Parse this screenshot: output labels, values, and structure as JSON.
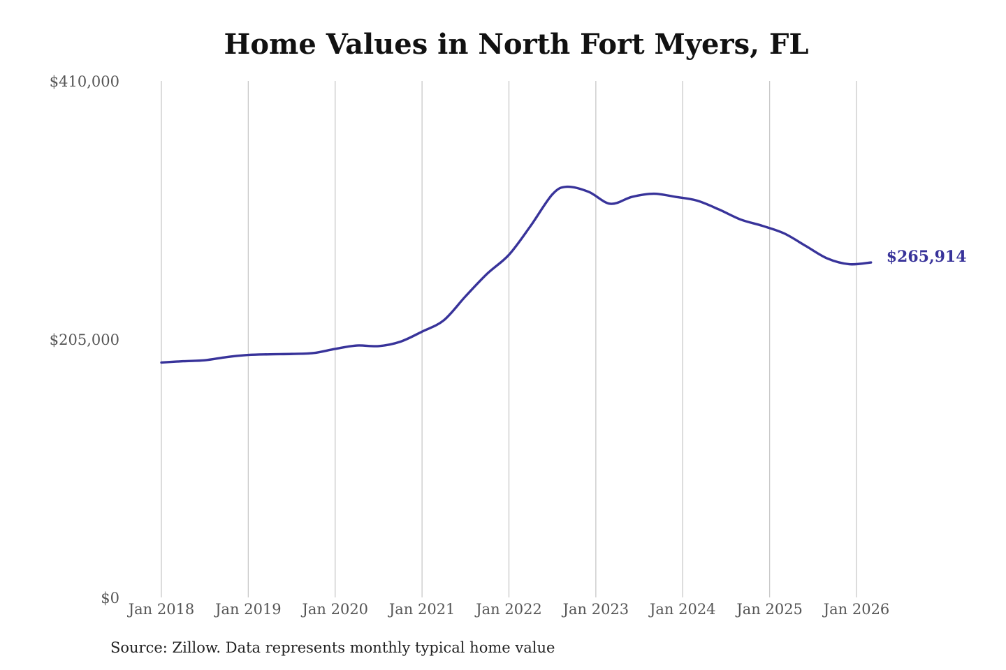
{
  "colors": {
    "series": "#38339a",
    "grid": "#c8c8c8",
    "title": "#111111"
  },
  "chart_data": {
    "type": "line",
    "title": "Home Values in North Fort Myers, FL",
    "xlabel": "",
    "ylabel": "",
    "ylim": [
      0,
      410000
    ],
    "y_ticks": [
      {
        "value": 0,
        "label": "$0"
      },
      {
        "value": 205000,
        "label": "$205,000"
      },
      {
        "value": 410000,
        "label": "$410,000"
      }
    ],
    "x_ticks": [
      {
        "value": "2018-01",
        "label": "Jan 2018"
      },
      {
        "value": "2019-01",
        "label": "Jan 2019"
      },
      {
        "value": "2020-01",
        "label": "Jan 2020"
      },
      {
        "value": "2021-01",
        "label": "Jan 2021"
      },
      {
        "value": "2022-01",
        "label": "Jan 2022"
      },
      {
        "value": "2023-01",
        "label": "Jan 2023"
      },
      {
        "value": "2024-01",
        "label": "Jan 2024"
      },
      {
        "value": "2025-01",
        "label": "Jan 2025"
      },
      {
        "value": "2026-01",
        "label": "Jan 2026"
      }
    ],
    "grid": "vertical",
    "end_label": "$265,914",
    "series": [
      {
        "name": "",
        "points": [
          {
            "x": "2018-01",
            "y": 186500
          },
          {
            "x": "2018-04",
            "y": 187500
          },
          {
            "x": "2018-07",
            "y": 188300
          },
          {
            "x": "2018-10",
            "y": 190800
          },
          {
            "x": "2019-01",
            "y": 192500
          },
          {
            "x": "2019-04",
            "y": 193000
          },
          {
            "x": "2019-07",
            "y": 193300
          },
          {
            "x": "2019-10",
            "y": 194000
          },
          {
            "x": "2020-01",
            "y": 197300
          },
          {
            "x": "2020-04",
            "y": 200000
          },
          {
            "x": "2020-07",
            "y": 199500
          },
          {
            "x": "2020-10",
            "y": 203000
          },
          {
            "x": "2021-01",
            "y": 211000
          },
          {
            "x": "2021-04",
            "y": 220000
          },
          {
            "x": "2021-07",
            "y": 239000
          },
          {
            "x": "2021-10",
            "y": 257000
          },
          {
            "x": "2022-01",
            "y": 272000
          },
          {
            "x": "2022-04",
            "y": 295000
          },
          {
            "x": "2022-07",
            "y": 320000
          },
          {
            "x": "2022-09",
            "y": 326000
          },
          {
            "x": "2022-12",
            "y": 322000
          },
          {
            "x": "2023-03",
            "y": 312500
          },
          {
            "x": "2023-06",
            "y": 318000
          },
          {
            "x": "2023-09",
            "y": 320500
          },
          {
            "x": "2023-12",
            "y": 318000
          },
          {
            "x": "2024-03",
            "y": 315000
          },
          {
            "x": "2024-06",
            "y": 308000
          },
          {
            "x": "2024-09",
            "y": 300000
          },
          {
            "x": "2024-12",
            "y": 295000
          },
          {
            "x": "2025-03",
            "y": 289000
          },
          {
            "x": "2025-06",
            "y": 279000
          },
          {
            "x": "2025-09",
            "y": 269000
          },
          {
            "x": "2025-12",
            "y": 264500
          },
          {
            "x": "2026-03",
            "y": 265914
          }
        ]
      }
    ]
  },
  "source_note": "Source: Zillow. Data represents monthly typical home value"
}
